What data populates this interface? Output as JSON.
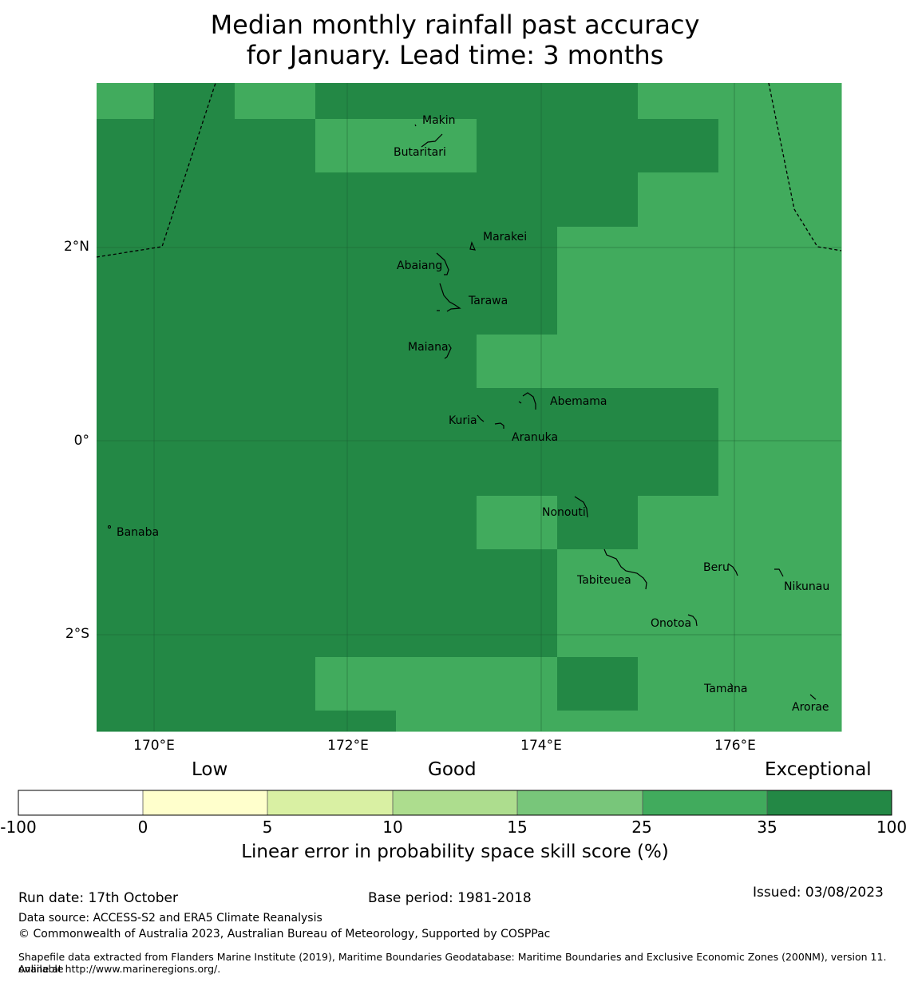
{
  "title": {
    "line1": "Median monthly rainfall past accuracy",
    "line2": "for January. Lead time: 3 months"
  },
  "colors": {
    "exceptional": "#238845",
    "very_good": "#41ab5d",
    "good_high": "#78c67a",
    "good": "#addd8e",
    "fair": "#d9f0a3",
    "low": "#ffffcc",
    "none": "#ffffff"
  },
  "map": {
    "lat_labels": [
      "2°N",
      "0°",
      "2°S"
    ],
    "lon_labels": [
      "170°E",
      "172°E",
      "174°E",
      "176°E"
    ],
    "places": [
      "Makin",
      "Butaritari",
      "Marakei",
      "Abaiang",
      "Tarawa",
      "Maiana",
      "Abemama",
      "Kuria",
      "Aranuka",
      "Banaba",
      "Nonouti",
      "Tabiteuea",
      "Beru",
      "Nikunau",
      "Onotoa",
      "Tamana",
      "Arorae"
    ]
  },
  "colorbar": {
    "categories": [
      "Low",
      "Good",
      "Exceptional"
    ],
    "ticks": [
      "-100",
      "0",
      "5",
      "10",
      "15",
      "25",
      "35",
      "100"
    ],
    "label": "Linear error in probability space skill score (%)"
  },
  "footer": {
    "run_date": "Run date: 17th October",
    "base_period": "Base period: 1981-2018",
    "issued": "Issued: 03/08/2023",
    "data_source": "Data source: ACCESS-S2 and ERA5 Climate Reanalysis",
    "copyright": "© Commonwealth of Australia 2023, Australian Bureau of Meteorology, Supported by COSPPac",
    "shapefile_line1": "Shapefile data extracted from Flanders Marine Institute (2019), Maritime Boundaries Geodatabase: Maritime Boundaries and Exclusive Economic Zones (200NM), version 11. Available",
    "shapefile_line2": "online at http://www.marineregions.org/."
  }
}
